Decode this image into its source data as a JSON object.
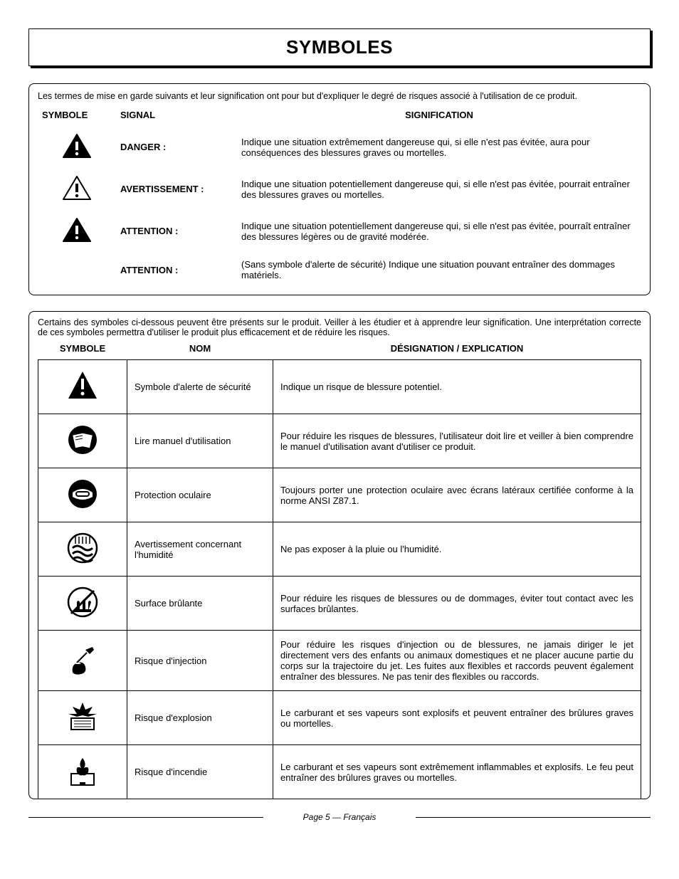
{
  "title": "SYMBOLES",
  "signal_box": {
    "intro": "Les termes de mise en garde suivants et leur signification ont pour but d'expliquer le degré de risques associé à l'utilisation de ce produit.",
    "headers": {
      "symbol": "SYMBOLE",
      "signal": "SIGNAL",
      "meaning": "SIGNIFICATION"
    },
    "rows": [
      {
        "icon_fill": "#000000",
        "icon_mark": "#ffffff",
        "signal": "DANGER :",
        "meaning": "Indique une situation extrêmement dangereuse qui, si elle n'est pas évitée, aura pour conséquences des blessures graves ou mortelles."
      },
      {
        "icon_fill": "#ffffff",
        "icon_mark": "#000000",
        "signal": "AVERTISSEMENT :",
        "meaning": "Indique une situation potentiellement dangereuse qui, si elle n'est pas évitée, pourrait entraîner des blessures graves ou mortelles."
      },
      {
        "icon_fill": "#000000",
        "icon_mark": "#ffffff",
        "signal": "ATTENTION :",
        "meaning": "Indique une situation potentiellement dangereuse qui, si elle n'est pas évitée, pourraît entraîner des blessures légères ou de gravité modérée."
      },
      {
        "icon_fill": "",
        "icon_mark": "",
        "signal": "ATTENTION :",
        "meaning": "(Sans symbole d'alerte de sécurité) Indique une situation pouvant entraîner des dommages matériels."
      }
    ]
  },
  "symbol_box": {
    "intro": "Certains des symboles ci-dessous peuvent être présents sur le produit. Veiller à les étudier et à apprendre leur signification. Une interprétation correcte de ces symboles permettra d'utiliser le produit plus efficacement et de réduire les risques.",
    "headers": {
      "symbol": "SYMBOLE",
      "name": "NOM",
      "desc": "DÉSIGNATION / EXPLICATION"
    },
    "rows": [
      {
        "icon": "alert",
        "name": "Symbole d'alerte de sécurité",
        "desc": "Indique un risque de blessure potentiel."
      },
      {
        "icon": "manual",
        "name": "Lire manuel d'utilisation",
        "desc": "Pour réduire les risques de blessures, l'utilisateur doit lire et veiller à bien comprendre le manuel d'utilisation avant d'utiliser ce produit."
      },
      {
        "icon": "eye",
        "name": "Protection oculaire",
        "desc": "Toujours porter une protection oculaire avec écrans latéraux certifiée conforme à la norme ANSI Z87.1."
      },
      {
        "icon": "wet",
        "name": "Avertissement concernant l'humidité",
        "desc": "Ne pas exposer à la pluie ou l'humidité."
      },
      {
        "icon": "hot",
        "name": "Surface brûlante",
        "desc": "Pour réduire les risques de blessures ou de dommages, éviter tout contact avec les surfaces brûlantes."
      },
      {
        "icon": "injection",
        "name": "Risque d'injection",
        "desc": "Pour réduire les risques d'injection ou de blessures, ne jamais diriger le jet directement vers des enfants ou animaux domestiques et ne placer aucune partie du corps sur la trajectoire du jet. Les fuites aux flexibles et raccords peuvent également entraîner des blessures. Ne pas tenir des flexibles ou raccords."
      },
      {
        "icon": "explosion",
        "name": "Risque d'explosion",
        "desc": "Le carburant et ses vapeurs sont explosifs et peuvent entraîner des brûlures graves ou mortelles."
      },
      {
        "icon": "fire",
        "name": "Risque d'incendie",
        "desc": "Le carburant et ses vapeurs sont extrêmement inflammables et explosifs. Le feu peut entraîner des brûlures graves ou mortelles."
      }
    ]
  },
  "footer": "Page 5  — Français"
}
